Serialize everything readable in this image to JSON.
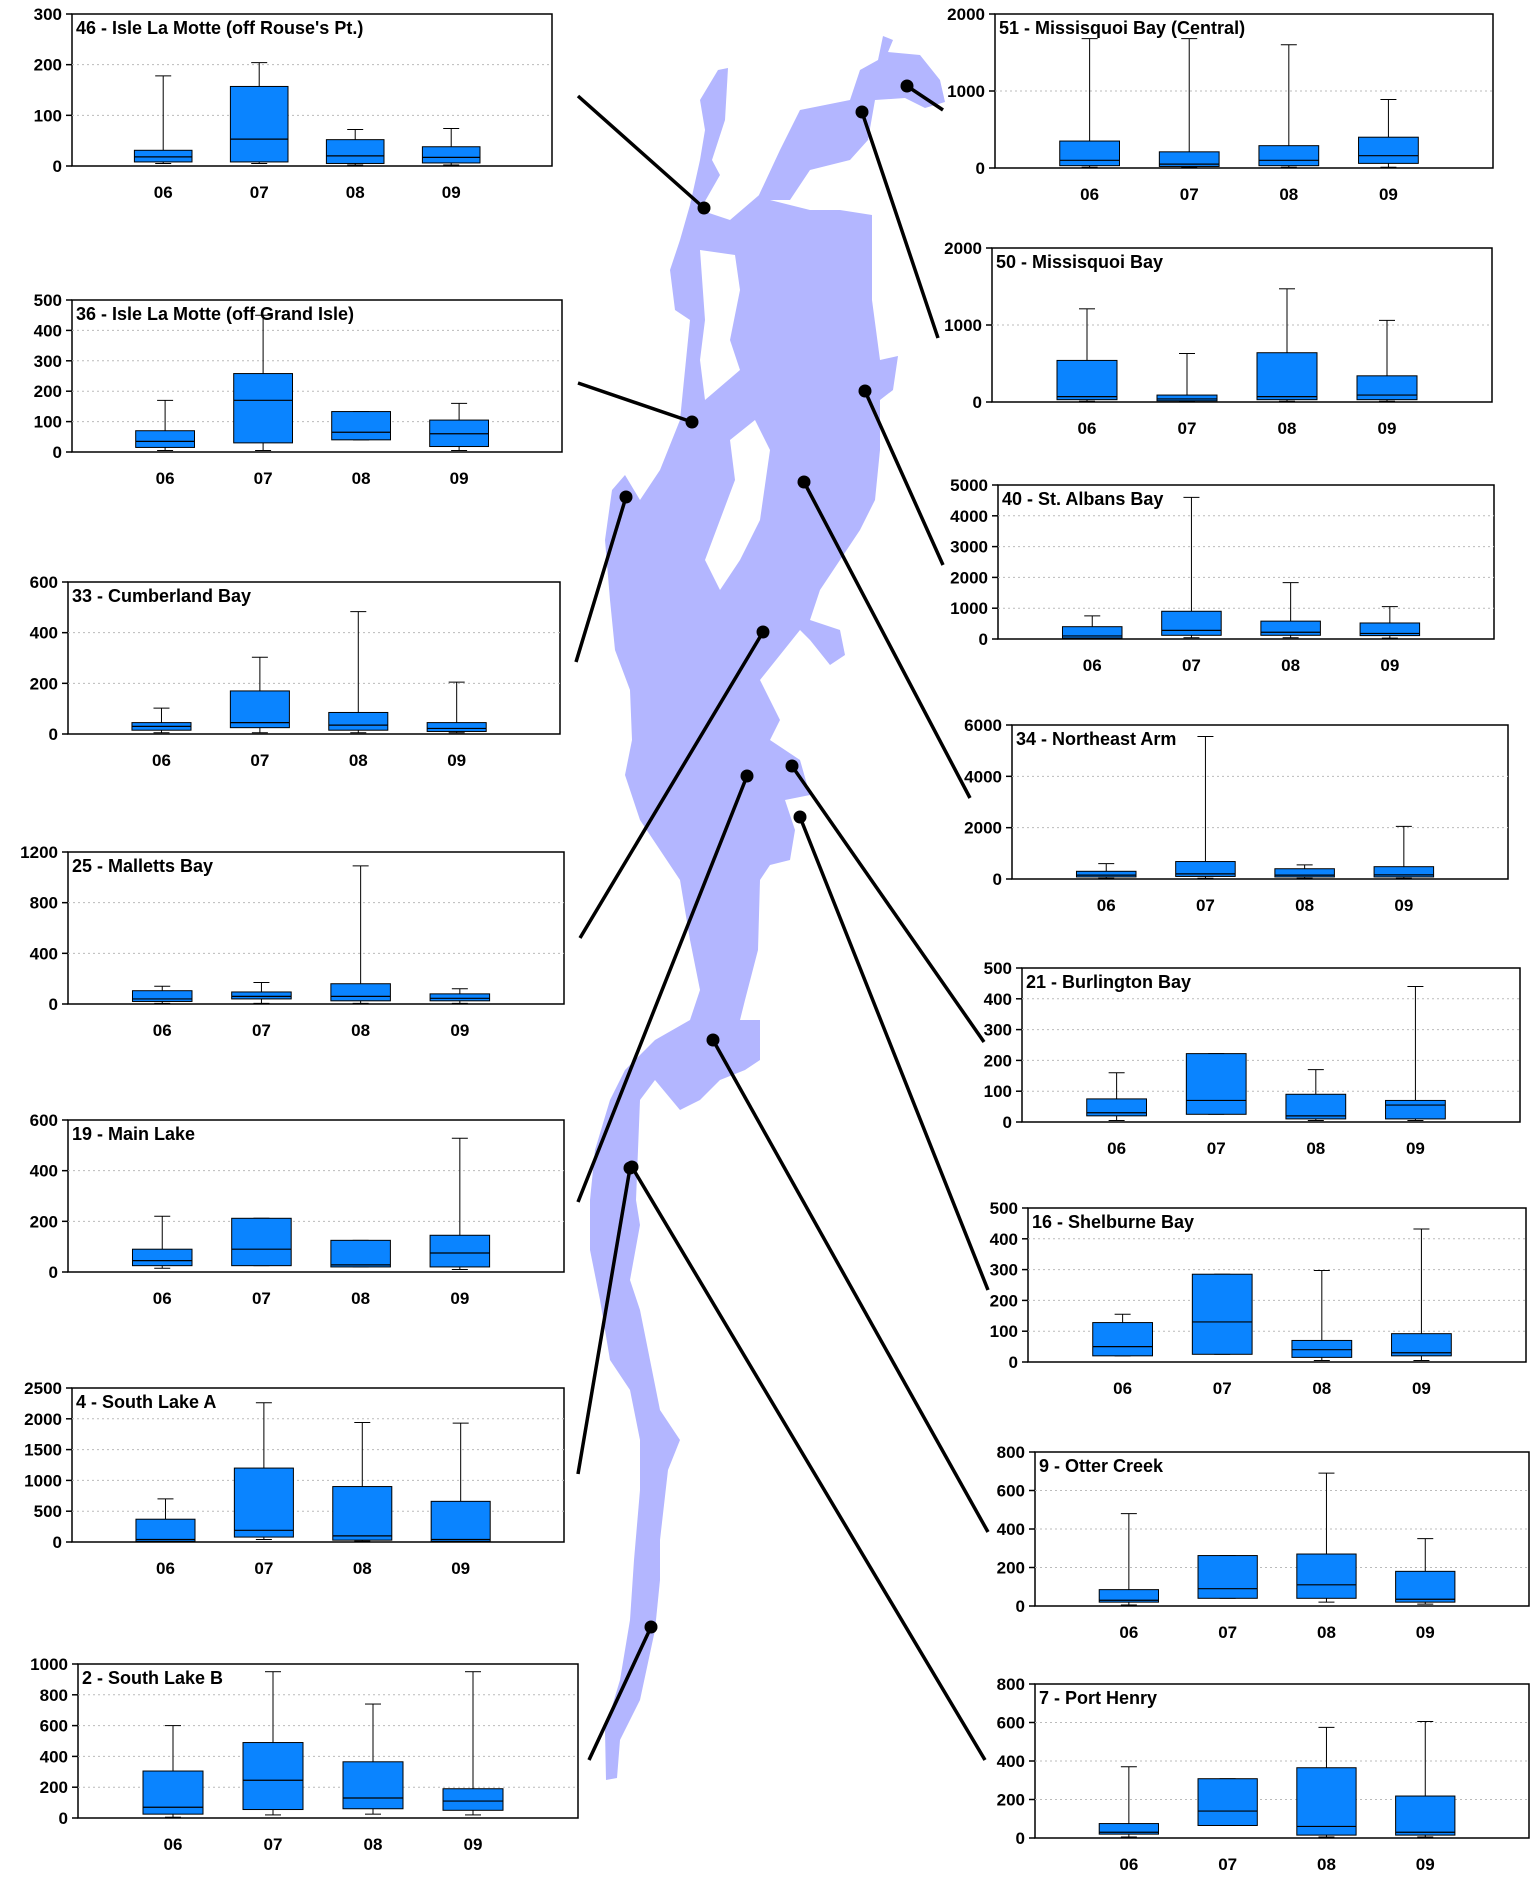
{
  "colors": {
    "lake": "#b3b6ff",
    "box": "#0a84ff",
    "frame": "#000000",
    "grid": "#bbbbbb"
  },
  "chart_data": [
    {
      "type": "box",
      "title": "46 - Isle La Motte (off Rouse's Pt.)",
      "categories": [
        "06",
        "07",
        "08",
        "09"
      ],
      "ylim": [
        0,
        300
      ],
      "yticks": [
        0,
        100,
        200,
        300
      ],
      "boxes": [
        {
          "min": 5,
          "q1": 8,
          "median": 18,
          "q3": 31,
          "max": 178
        },
        {
          "min": 5,
          "q1": 8,
          "median": 53,
          "q3": 157,
          "max": 204
        },
        {
          "min": 2,
          "q1": 5,
          "median": 20,
          "q3": 52,
          "max": 72
        },
        {
          "min": 2,
          "q1": 6,
          "median": 17,
          "q3": 38,
          "max": 74
        }
      ]
    },
    {
      "type": "box",
      "title": "36 - Isle La Motte (off Grand Isle)",
      "categories": [
        "06",
        "07",
        "08",
        "09"
      ],
      "ylim": [
        0,
        500
      ],
      "yticks": [
        0,
        100,
        200,
        300,
        400,
        500
      ],
      "boxes": [
        {
          "min": 5,
          "q1": 15,
          "median": 35,
          "q3": 70,
          "max": 170
        },
        {
          "min": 5,
          "q1": 30,
          "median": 170,
          "q3": 258,
          "max": 450
        },
        {
          "min": 40,
          "q1": 40,
          "median": 65,
          "q3": 133,
          "max": 133
        },
        {
          "min": 5,
          "q1": 18,
          "median": 60,
          "q3": 105,
          "max": 160
        }
      ]
    },
    {
      "type": "box",
      "title": "33 - Cumberland Bay",
      "categories": [
        "06",
        "07",
        "08",
        "09"
      ],
      "ylim": [
        0,
        600
      ],
      "yticks": [
        0,
        200,
        400,
        600
      ],
      "boxes": [
        {
          "min": 5,
          "q1": 15,
          "median": 30,
          "q3": 45,
          "max": 102
        },
        {
          "min": 5,
          "q1": 25,
          "median": 45,
          "q3": 170,
          "max": 303
        },
        {
          "min": 5,
          "q1": 15,
          "median": 35,
          "q3": 85,
          "max": 483
        },
        {
          "min": 5,
          "q1": 10,
          "median": 22,
          "q3": 45,
          "max": 205
        }
      ]
    },
    {
      "type": "box",
      "title": "25 - Malletts Bay",
      "categories": [
        "06",
        "07",
        "08",
        "09"
      ],
      "ylim": [
        0,
        1200
      ],
      "yticks": [
        0,
        400,
        800,
        1200
      ],
      "boxes": [
        {
          "min": 5,
          "q1": 20,
          "median": 40,
          "q3": 105,
          "max": 140
        },
        {
          "min": 5,
          "q1": 40,
          "median": 60,
          "q3": 95,
          "max": 170
        },
        {
          "min": 5,
          "q1": 25,
          "median": 60,
          "q3": 160,
          "max": 1090
        },
        {
          "min": 5,
          "q1": 25,
          "median": 45,
          "q3": 80,
          "max": 120
        }
      ]
    },
    {
      "type": "box",
      "title": "19 - Main Lake",
      "categories": [
        "06",
        "07",
        "08",
        "09"
      ],
      "ylim": [
        0,
        600
      ],
      "yticks": [
        0,
        200,
        400,
        600
      ],
      "boxes": [
        {
          "min": 15,
          "q1": 25,
          "median": 45,
          "q3": 90,
          "max": 220
        },
        {
          "min": 25,
          "q1": 25,
          "median": 90,
          "q3": 212,
          "max": 212
        },
        {
          "min": 20,
          "q1": 20,
          "median": 28,
          "q3": 125,
          "max": 125
        },
        {
          "min": 10,
          "q1": 20,
          "median": 75,
          "q3": 145,
          "max": 528
        }
      ]
    },
    {
      "type": "box",
      "title": "4 - South Lake A",
      "categories": [
        "06",
        "07",
        "08",
        "09"
      ],
      "ylim": [
        0,
        2500
      ],
      "yticks": [
        0,
        500,
        1000,
        1500,
        2000,
        2500
      ],
      "boxes": [
        {
          "min": 5,
          "q1": 10,
          "median": 40,
          "q3": 370,
          "max": 700
        },
        {
          "min": 40,
          "q1": 80,
          "median": 190,
          "q3": 1200,
          "max": 2260
        },
        {
          "min": 15,
          "q1": 30,
          "median": 100,
          "q3": 900,
          "max": 1940
        },
        {
          "min": 5,
          "q1": 10,
          "median": 40,
          "q3": 660,
          "max": 1930
        }
      ]
    },
    {
      "type": "box",
      "title": "2 - South Lake B",
      "categories": [
        "06",
        "07",
        "08",
        "09"
      ],
      "ylim": [
        0,
        1000
      ],
      "yticks": [
        0,
        200,
        400,
        600,
        800,
        1000
      ],
      "boxes": [
        {
          "min": 5,
          "q1": 25,
          "median": 70,
          "q3": 305,
          "max": 600
        },
        {
          "min": 20,
          "q1": 55,
          "median": 245,
          "q3": 490,
          "max": 950
        },
        {
          "min": 25,
          "q1": 60,
          "median": 130,
          "q3": 365,
          "max": 740
        },
        {
          "min": 20,
          "q1": 50,
          "median": 110,
          "q3": 190,
          "max": 950
        }
      ]
    },
    {
      "type": "box",
      "title": "51 - Missisquoi Bay (Central)",
      "categories": [
        "06",
        "07",
        "08",
        "09"
      ],
      "ylim": [
        0,
        2000
      ],
      "yticks": [
        0,
        1000,
        2000
      ],
      "boxes": [
        {
          "min": 10,
          "q1": 30,
          "median": 100,
          "q3": 350,
          "max": 1680
        },
        {
          "min": 10,
          "q1": 20,
          "median": 50,
          "q3": 210,
          "max": 1680
        },
        {
          "min": 10,
          "q1": 30,
          "median": 100,
          "q3": 290,
          "max": 1600
        },
        {
          "min": 10,
          "q1": 60,
          "median": 160,
          "q3": 400,
          "max": 890
        }
      ]
    },
    {
      "type": "box",
      "title": "50 - Missisquoi Bay",
      "categories": [
        "06",
        "07",
        "08",
        "09"
      ],
      "ylim": [
        0,
        2000
      ],
      "yticks": [
        0,
        1000,
        2000
      ],
      "boxes": [
        {
          "min": 10,
          "q1": 30,
          "median": 70,
          "q3": 540,
          "max": 1210
        },
        {
          "min": 10,
          "q1": 15,
          "median": 40,
          "q3": 90,
          "max": 630
        },
        {
          "min": 10,
          "q1": 30,
          "median": 70,
          "q3": 640,
          "max": 1470
        },
        {
          "min": 10,
          "q1": 30,
          "median": 90,
          "q3": 340,
          "max": 1060
        }
      ]
    },
    {
      "type": "box",
      "title": "40 - St. Albans Bay",
      "categories": [
        "06",
        "07",
        "08",
        "09"
      ],
      "ylim": [
        0,
        5000
      ],
      "yticks": [
        0,
        1000,
        2000,
        3000,
        4000,
        5000
      ],
      "boxes": [
        {
          "min": 10,
          "q1": 30,
          "median": 100,
          "q3": 400,
          "max": 750
        },
        {
          "min": 40,
          "q1": 120,
          "median": 280,
          "q3": 900,
          "max": 4600
        },
        {
          "min": 40,
          "q1": 120,
          "median": 220,
          "q3": 580,
          "max": 1830
        },
        {
          "min": 30,
          "q1": 110,
          "median": 180,
          "q3": 520,
          "max": 1050
        }
      ]
    },
    {
      "type": "box",
      "title": "34 - Northeast Arm",
      "categories": [
        "06",
        "07",
        "08",
        "09"
      ],
      "ylim": [
        0,
        6000
      ],
      "yticks": [
        0,
        2000,
        4000,
        6000
      ],
      "boxes": [
        {
          "min": 30,
          "q1": 80,
          "median": 150,
          "q3": 300,
          "max": 600
        },
        {
          "min": 30,
          "q1": 100,
          "median": 200,
          "q3": 680,
          "max": 5550
        },
        {
          "min": 30,
          "q1": 80,
          "median": 150,
          "q3": 400,
          "max": 550
        },
        {
          "min": 30,
          "q1": 80,
          "median": 160,
          "q3": 480,
          "max": 2050
        }
      ]
    },
    {
      "type": "box",
      "title": "21 - Burlington Bay",
      "categories": [
        "06",
        "07",
        "08",
        "09"
      ],
      "ylim": [
        0,
        500
      ],
      "yticks": [
        0,
        100,
        200,
        300,
        400,
        500
      ],
      "boxes": [
        {
          "min": 5,
          "q1": 20,
          "median": 30,
          "q3": 75,
          "max": 160
        },
        {
          "min": 25,
          "q1": 25,
          "median": 70,
          "q3": 222,
          "max": 222
        },
        {
          "min": 5,
          "q1": 10,
          "median": 20,
          "q3": 90,
          "max": 170
        },
        {
          "min": 5,
          "q1": 10,
          "median": 55,
          "q3": 70,
          "max": 440
        }
      ]
    },
    {
      "type": "box",
      "title": "16 - Shelburne Bay",
      "categories": [
        "06",
        "07",
        "08",
        "09"
      ],
      "ylim": [
        0,
        500
      ],
      "yticks": [
        0,
        100,
        200,
        300,
        400,
        500
      ],
      "boxes": [
        {
          "min": 20,
          "q1": 20,
          "median": 50,
          "q3": 128,
          "max": 155
        },
        {
          "min": 25,
          "q1": 25,
          "median": 130,
          "q3": 285,
          "max": 285
        },
        {
          "min": 5,
          "q1": 15,
          "median": 40,
          "q3": 70,
          "max": 297
        },
        {
          "min": 5,
          "q1": 20,
          "median": 30,
          "q3": 92,
          "max": 432
        }
      ]
    },
    {
      "type": "box",
      "title": "9 - Otter Creek",
      "categories": [
        "06",
        "07",
        "08",
        "09"
      ],
      "ylim": [
        0,
        800
      ],
      "yticks": [
        0,
        200,
        400,
        600,
        800
      ],
      "boxes": [
        {
          "min": 5,
          "q1": 20,
          "median": 30,
          "q3": 85,
          "max": 480
        },
        {
          "min": 40,
          "q1": 40,
          "median": 90,
          "q3": 262,
          "max": 262
        },
        {
          "min": 20,
          "q1": 40,
          "median": 110,
          "q3": 270,
          "max": 690
        },
        {
          "min": 10,
          "q1": 20,
          "median": 35,
          "q3": 180,
          "max": 350
        }
      ]
    },
    {
      "type": "box",
      "title": "7 - Port Henry",
      "categories": [
        "06",
        "07",
        "08",
        "09"
      ],
      "ylim": [
        0,
        800
      ],
      "yticks": [
        0,
        200,
        400,
        600,
        800
      ],
      "boxes": [
        {
          "min": 5,
          "q1": 20,
          "median": 30,
          "q3": 75,
          "max": 370
        },
        {
          "min": 65,
          "q1": 65,
          "median": 140,
          "q3": 308,
          "max": 308
        },
        {
          "min": 5,
          "q1": 15,
          "median": 60,
          "q3": 365,
          "max": 575
        },
        {
          "min": 5,
          "q1": 15,
          "median": 30,
          "q3": 218,
          "max": 605
        }
      ]
    }
  ]
}
